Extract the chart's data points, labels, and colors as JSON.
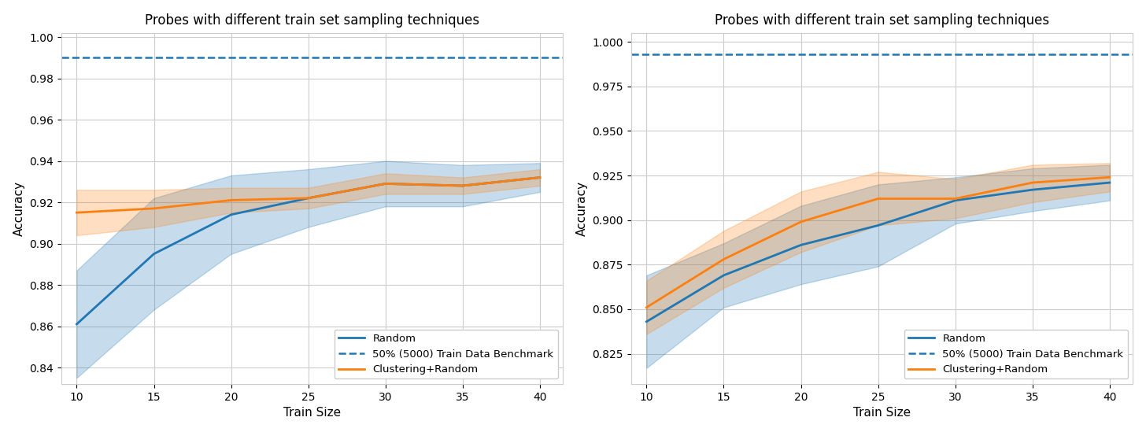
{
  "title": "Probes with different train set sampling techniques",
  "xlabel": "Train Size",
  "ylabel": "Accuracy",
  "x": [
    10,
    15,
    20,
    25,
    30,
    35,
    40
  ],
  "left": {
    "benchmark": 0.99,
    "random_mean": [
      0.861,
      0.895,
      0.914,
      0.922,
      0.929,
      0.928,
      0.932
    ],
    "random_lo": [
      0.835,
      0.868,
      0.895,
      0.908,
      0.918,
      0.918,
      0.925
    ],
    "random_hi": [
      0.887,
      0.922,
      0.933,
      0.936,
      0.94,
      0.938,
      0.939
    ],
    "cluster_mean": [
      0.915,
      0.917,
      0.921,
      0.922,
      0.929,
      0.928,
      0.932
    ],
    "cluster_lo": [
      0.904,
      0.908,
      0.915,
      0.917,
      0.924,
      0.924,
      0.928
    ],
    "cluster_hi": [
      0.926,
      0.926,
      0.927,
      0.927,
      0.934,
      0.932,
      0.936
    ],
    "ylim": [
      0.832,
      1.002
    ],
    "yticks": [
      0.84,
      0.86,
      0.88,
      0.9,
      0.92,
      0.94,
      0.96,
      0.98,
      1.0
    ]
  },
  "right": {
    "benchmark": 0.993,
    "random_mean": [
      0.843,
      0.869,
      0.886,
      0.897,
      0.911,
      0.917,
      0.921
    ],
    "random_lo": [
      0.817,
      0.851,
      0.864,
      0.874,
      0.898,
      0.905,
      0.911
    ],
    "random_hi": [
      0.869,
      0.887,
      0.908,
      0.92,
      0.924,
      0.929,
      0.931
    ],
    "cluster_mean": [
      0.851,
      0.878,
      0.899,
      0.912,
      0.912,
      0.921,
      0.924
    ],
    "cluster_lo": [
      0.836,
      0.862,
      0.882,
      0.897,
      0.901,
      0.91,
      0.916
    ],
    "cluster_hi": [
      0.866,
      0.894,
      0.916,
      0.927,
      0.923,
      0.931,
      0.932
    ],
    "ylim": [
      0.808,
      1.005
    ],
    "yticks": [
      0.825,
      0.85,
      0.875,
      0.9,
      0.925,
      0.95,
      0.975,
      1.0
    ]
  },
  "blue_color": "#1f77b4",
  "orange_color": "#ff7f0e",
  "blue_fill_alpha": 0.25,
  "orange_fill_alpha": 0.25,
  "legend_labels": [
    "Random",
    "50% (5000) Train Data Benchmark",
    "Clustering+Random"
  ]
}
